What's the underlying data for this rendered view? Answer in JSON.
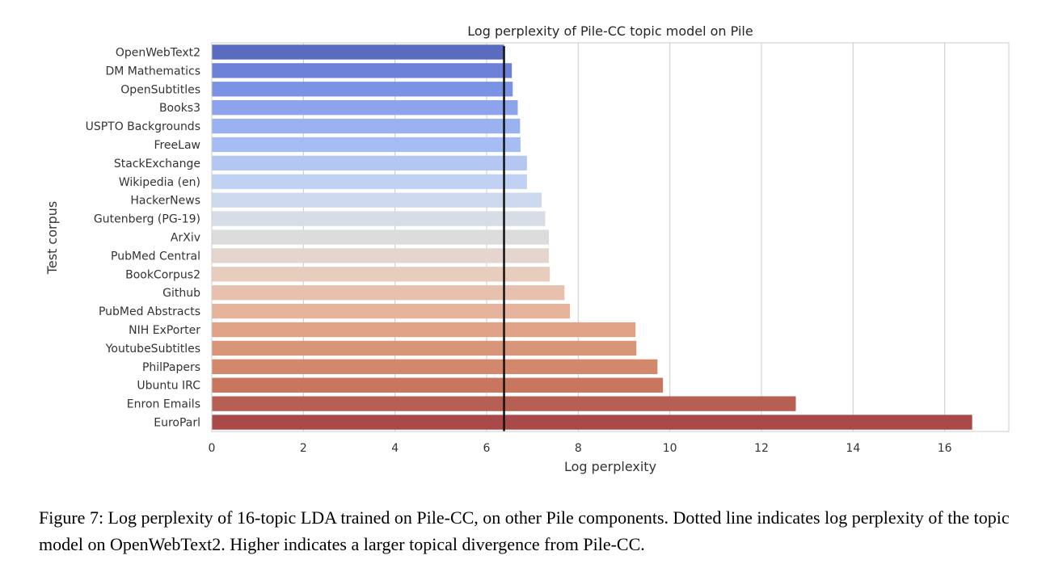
{
  "chart_data": {
    "type": "bar",
    "orientation": "horizontal",
    "title": "Log perplexity of Pile-CC topic model on Pile",
    "xlabel": "Log perplexity",
    "ylabel": "Test corpus",
    "xlim": [
      0,
      17.4
    ],
    "xticks": [
      0,
      2,
      4,
      6,
      8,
      10,
      12,
      14,
      16
    ],
    "grid": "vertical",
    "categories": [
      "OpenWebText2",
      "DM Mathematics",
      "OpenSubtitles",
      "Books3",
      "USPTO Backgrounds",
      "FreeLaw",
      "StackExchange",
      "Wikipedia (en)",
      "HackerNews",
      "Gutenberg (PG-19)",
      "ArXiv",
      "PubMed Central",
      "BookCorpus2",
      "Github",
      "PubMed Abstracts",
      "NIH ExPorter",
      "YoutubeSubtitles",
      "PhilPapers",
      "Ubuntu IRC",
      "Enron Emails",
      "EuroParl"
    ],
    "values": [
      6.38,
      6.55,
      6.57,
      6.68,
      6.73,
      6.74,
      6.88,
      6.88,
      7.2,
      7.28,
      7.36,
      7.36,
      7.38,
      7.7,
      7.82,
      9.25,
      9.27,
      9.73,
      9.85,
      12.75,
      16.6
    ],
    "colors": [
      "#5b6bc0",
      "#6b80d6",
      "#7b93e4",
      "#8da4ec",
      "#9bb2f1",
      "#a6bdf3",
      "#b4c7f3",
      "#c0d1f3",
      "#cdd9ee",
      "#d6dde6",
      "#dcdcdc",
      "#e4d6ce",
      "#e8cdbe",
      "#e7c1ad",
      "#e6b49c",
      "#e0a287",
      "#d99578",
      "#d3876b",
      "#c9765e",
      "#b85f53",
      "#a9494a"
    ],
    "reference_line": {
      "value": 6.38,
      "color": "#111111"
    }
  },
  "caption": "Figure 7: Log perplexity of 16-topic LDA trained on Pile-CC, on other Pile components. Dotted line indicates log perplexity of the topic model on OpenWebText2. Higher indicates a larger topical divergence from Pile-CC."
}
